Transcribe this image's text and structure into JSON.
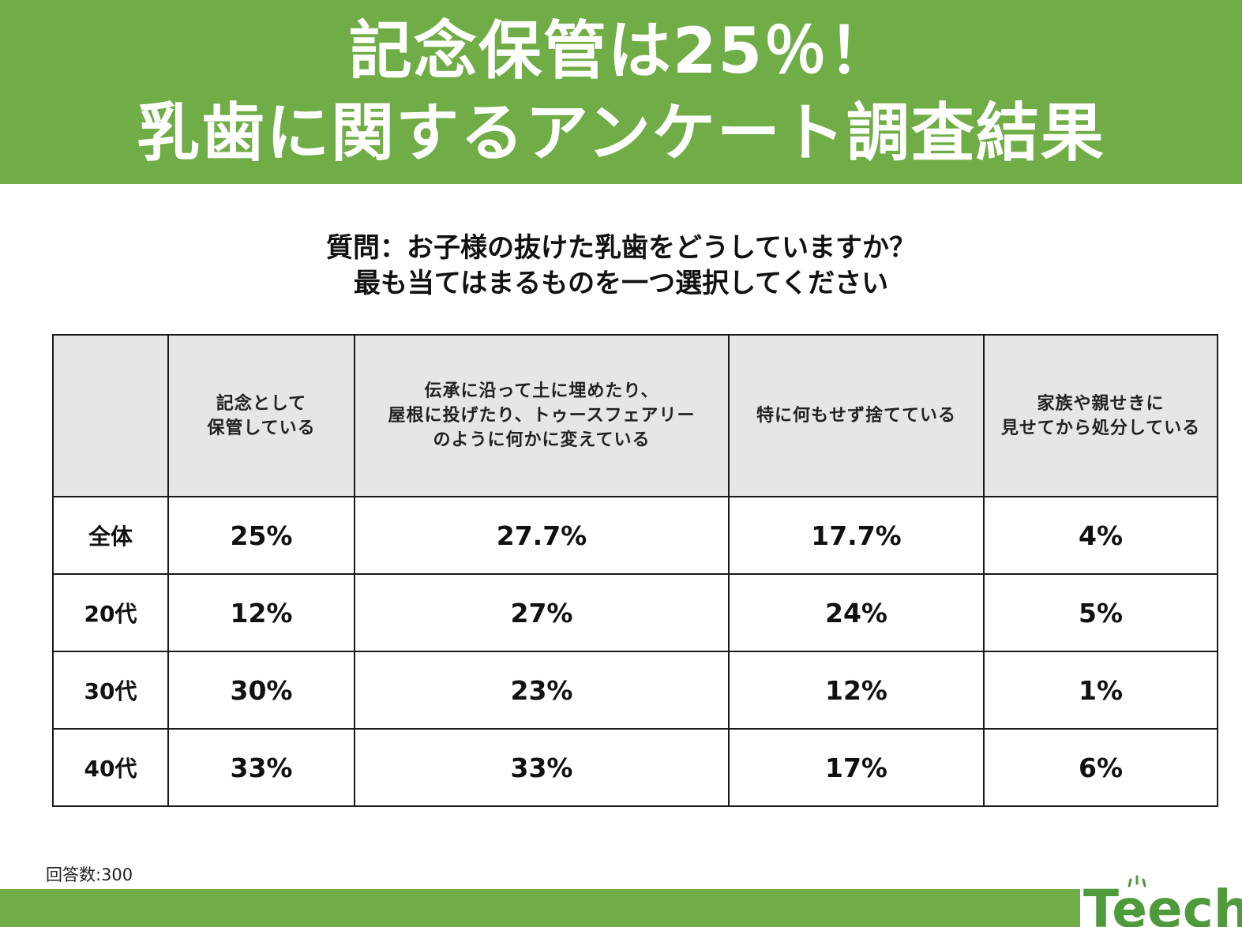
{
  "banner": {
    "title_line1": "記念保管は25％！",
    "title_line2": "乳歯に関するアンケート調査結果"
  },
  "question": {
    "line1": "質問：お子様の抜けた乳歯をどうしていますか？",
    "line2": "最も当てはまるものを一つ選択してください"
  },
  "table": {
    "corner": "",
    "columns": [
      [
        "記念として",
        "保管している"
      ],
      [
        "伝承に沿って土に埋めたり、",
        "屋根に投げたり、トゥースフェアリー",
        "のように何かに変えている"
      ],
      [
        "特に何もせず捨てている"
      ],
      [
        "家族や親せきに",
        "見せてから処分している"
      ]
    ],
    "rows": [
      {
        "label": "全体",
        "values": [
          "25%",
          "27.7%",
          "17.7%",
          "4%"
        ]
      },
      {
        "label": "20代",
        "values": [
          "12%",
          "27%",
          "24%",
          "5%"
        ]
      },
      {
        "label": "30代",
        "values": [
          "30%",
          "23%",
          "12%",
          "1%"
        ]
      },
      {
        "label": "40代",
        "values": [
          "33%",
          "33%",
          "17%",
          "6%"
        ]
      }
    ]
  },
  "footer": {
    "response_count": "回答数:300",
    "logo_text": "Teech"
  },
  "colors": {
    "brand_green": "#70ad47",
    "header_gray": "#e6e6e6"
  }
}
